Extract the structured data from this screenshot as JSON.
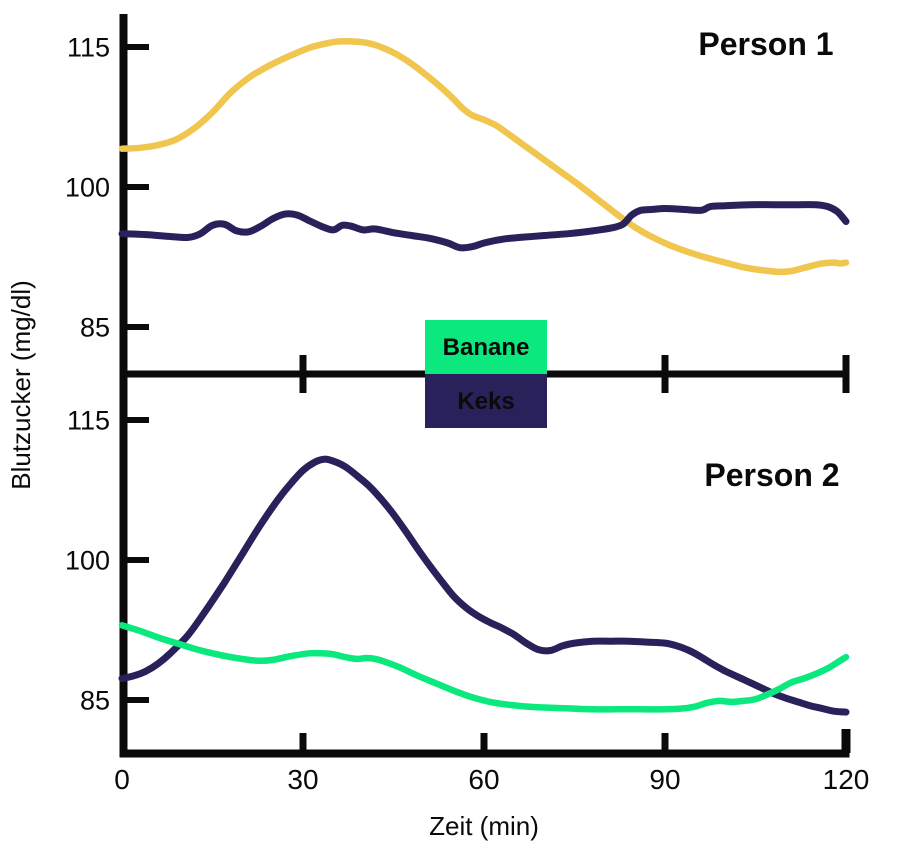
{
  "chart_data": {
    "type": "line",
    "title": "",
    "xlabel": "Zeit (min)",
    "ylabel": "Blutzucker (mg/dl)",
    "x_range": [
      0,
      120
    ],
    "x_ticks": [
      0,
      30,
      60,
      90,
      120
    ],
    "y_ticks": [
      115,
      100,
      85
    ],
    "axis_color": "#0a0a0a",
    "grid": false,
    "legend": {
      "position": "center-between-panels",
      "items": [
        {
          "label": "Banane",
          "bg": "#0BE87E",
          "text_color": "#0a0a14"
        },
        {
          "label": "Keks",
          "bg": "#292159",
          "text_color": "#ffffff"
        }
      ]
    },
    "panels": [
      {
        "title": "Person 1",
        "series": [
          {
            "name": "Banane",
            "color": "#F0C64E",
            "points": [
              [
                0,
                104.1
              ],
              [
                3,
                104.2
              ],
              [
                6,
                104.5
              ],
              [
                9,
                105.1
              ],
              [
                12,
                106.3
              ],
              [
                15,
                108.0
              ],
              [
                18,
                110.1
              ],
              [
                21,
                111.7
              ],
              [
                23,
                112.5
              ],
              [
                25,
                113.2
              ],
              [
                28,
                114.1
              ],
              [
                31,
                114.9
              ],
              [
                34,
                115.4
              ],
              [
                36,
                115.6
              ],
              [
                38,
                115.6
              ],
              [
                40,
                115.5
              ],
              [
                42,
                115.2
              ],
              [
                45,
                114.4
              ],
              [
                48,
                113.2
              ],
              [
                51,
                111.7
              ],
              [
                53,
                110.6
              ],
              [
                55,
                109.4
              ],
              [
                56.5,
                108.4
              ],
              [
                58,
                107.7
              ],
              [
                60,
                107.2
              ],
              [
                62,
                106.6
              ],
              [
                64,
                105.7
              ],
              [
                67,
                104.3
              ],
              [
                70,
                102.9
              ],
              [
                73,
                101.5
              ],
              [
                76,
                100.1
              ],
              [
                79,
                98.6
              ],
              [
                82,
                97.1
              ],
              [
                85,
                95.7
              ],
              [
                88,
                94.6
              ],
              [
                91,
                93.7
              ],
              [
                94,
                93.0
              ],
              [
                97,
                92.4
              ],
              [
                100,
                91.9
              ],
              [
                103,
                91.4
              ],
              [
                106,
                91.1
              ],
              [
                109,
                90.9
              ],
              [
                111,
                91.0
              ],
              [
                114,
                91.5
              ],
              [
                116,
                91.8
              ],
              [
                118,
                91.9
              ],
              [
                119,
                91.8
              ],
              [
                120,
                91.9
              ]
            ]
          },
          {
            "name": "Keks",
            "color": "#292159",
            "points": [
              [
                0,
                95.0
              ],
              [
                4,
                94.9
              ],
              [
                8,
                94.7
              ],
              [
                11,
                94.6
              ],
              [
                13,
                95.0
              ],
              [
                15,
                95.9
              ],
              [
                17,
                96.0
              ],
              [
                19,
                95.3
              ],
              [
                21,
                95.2
              ],
              [
                23,
                95.8
              ],
              [
                25,
                96.6
              ],
              [
                27,
                97.1
              ],
              [
                29,
                97.0
              ],
              [
                31,
                96.4
              ],
              [
                33,
                95.8
              ],
              [
                35,
                95.4
              ],
              [
                36.5,
                95.9
              ],
              [
                38,
                95.8
              ],
              [
                40,
                95.4
              ],
              [
                42,
                95.5
              ],
              [
                45,
                95.1
              ],
              [
                48,
                94.8
              ],
              [
                51,
                94.5
              ],
              [
                54,
                94.0
              ],
              [
                56,
                93.5
              ],
              [
                58,
                93.6
              ],
              [
                60,
                94.0
              ],
              [
                63,
                94.4
              ],
              [
                66,
                94.6
              ],
              [
                70,
                94.8
              ],
              [
                74,
                95.0
              ],
              [
                78,
                95.3
              ],
              [
                81,
                95.6
              ],
              [
                83,
                96.0
              ],
              [
                84.5,
                97.0
              ],
              [
                86,
                97.5
              ],
              [
                88,
                97.6
              ],
              [
                90,
                97.7
              ],
              [
                93,
                97.6
              ],
              [
                96,
                97.5
              ],
              [
                97.5,
                97.9
              ],
              [
                100,
                98.0
              ],
              [
                104,
                98.1
              ],
              [
                108,
                98.1
              ],
              [
                112,
                98.1
              ],
              [
                115,
                98.1
              ],
              [
                117,
                97.9
              ],
              [
                118.5,
                97.4
              ],
              [
                119.5,
                96.7
              ],
              [
                120,
                96.3
              ]
            ]
          }
        ]
      },
      {
        "title": "Person 2",
        "series": [
          {
            "name": "Keks",
            "color": "#292159",
            "points": [
              [
                0,
                87.3
              ],
              [
                2,
                87.6
              ],
              [
                4,
                88.1
              ],
              [
                6,
                88.9
              ],
              [
                8,
                90.0
              ],
              [
                11,
                92.0
              ],
              [
                14,
                94.7
              ],
              [
                17,
                97.6
              ],
              [
                20,
                100.7
              ],
              [
                23,
                103.8
              ],
              [
                26,
                106.6
              ],
              [
                28,
                108.2
              ],
              [
                30,
                109.6
              ],
              [
                32,
                110.5
              ],
              [
                33.5,
                110.8
              ],
              [
                35,
                110.6
              ],
              [
                37,
                110.0
              ],
              [
                39,
                109.0
              ],
              [
                41,
                107.9
              ],
              [
                43,
                106.5
              ],
              [
                45,
                104.9
              ],
              [
                47,
                103.1
              ],
              [
                49,
                101.2
              ],
              [
                51,
                99.4
              ],
              [
                53,
                97.7
              ],
              [
                55,
                96.1
              ],
              [
                57,
                94.9
              ],
              [
                59,
                94.0
              ],
              [
                61,
                93.3
              ],
              [
                63,
                92.7
              ],
              [
                65,
                92.0
              ],
              [
                67,
                91.1
              ],
              [
                69,
                90.4
              ],
              [
                71,
                90.3
              ],
              [
                73,
                90.8
              ],
              [
                75,
                91.1
              ],
              [
                78,
                91.3
              ],
              [
                81,
                91.3
              ],
              [
                84,
                91.3
              ],
              [
                87,
                91.2
              ],
              [
                90,
                91.1
              ],
              [
                92,
                90.8
              ],
              [
                94,
                90.3
              ],
              [
                96,
                89.6
              ],
              [
                98,
                88.8
              ],
              [
                100,
                88.1
              ],
              [
                102,
                87.5
              ],
              [
                104,
                86.9
              ],
              [
                106,
                86.3
              ],
              [
                108,
                85.7
              ],
              [
                110,
                85.2
              ],
              [
                112,
                84.8
              ],
              [
                114,
                84.4
              ],
              [
                116,
                84.1
              ],
              [
                118,
                83.8
              ],
              [
                120,
                83.7
              ]
            ]
          },
          {
            "name": "Banane",
            "color": "#0BE87E",
            "points": [
              [
                0,
                93.0
              ],
              [
                3,
                92.4
              ],
              [
                6,
                91.7
              ],
              [
                9,
                91.1
              ],
              [
                12,
                90.5
              ],
              [
                15,
                90.0
              ],
              [
                18,
                89.6
              ],
              [
                21,
                89.3
              ],
              [
                23,
                89.2
              ],
              [
                25,
                89.3
              ],
              [
                28,
                89.7
              ],
              [
                31,
                90.0
              ],
              [
                33,
                90.0
              ],
              [
                35,
                89.9
              ],
              [
                37,
                89.6
              ],
              [
                39,
                89.4
              ],
              [
                40.5,
                89.5
              ],
              [
                42,
                89.4
              ],
              [
                44,
                89.0
              ],
              [
                46,
                88.5
              ],
              [
                49,
                87.6
              ],
              [
                52,
                86.8
              ],
              [
                55,
                86.0
              ],
              [
                58,
                85.3
              ],
              [
                61,
                84.8
              ],
              [
                64,
                84.5
              ],
              [
                67,
                84.3
              ],
              [
                70,
                84.2
              ],
              [
                74,
                84.1
              ],
              [
                78,
                84.0
              ],
              [
                82,
                84.0
              ],
              [
                86,
                84.0
              ],
              [
                90,
                84.0
              ],
              [
                93,
                84.1
              ],
              [
                95,
                84.3
              ],
              [
                97,
                84.7
              ],
              [
                99,
                84.9
              ],
              [
                101,
                84.8
              ],
              [
                103,
                84.9
              ],
              [
                105,
                85.1
              ],
              [
                107,
                85.6
              ],
              [
                109,
                86.2
              ],
              [
                111,
                86.9
              ],
              [
                113,
                87.3
              ],
              [
                115,
                87.8
              ],
              [
                117,
                88.4
              ],
              [
                119,
                89.2
              ],
              [
                120,
                89.6
              ]
            ]
          }
        ]
      }
    ]
  }
}
